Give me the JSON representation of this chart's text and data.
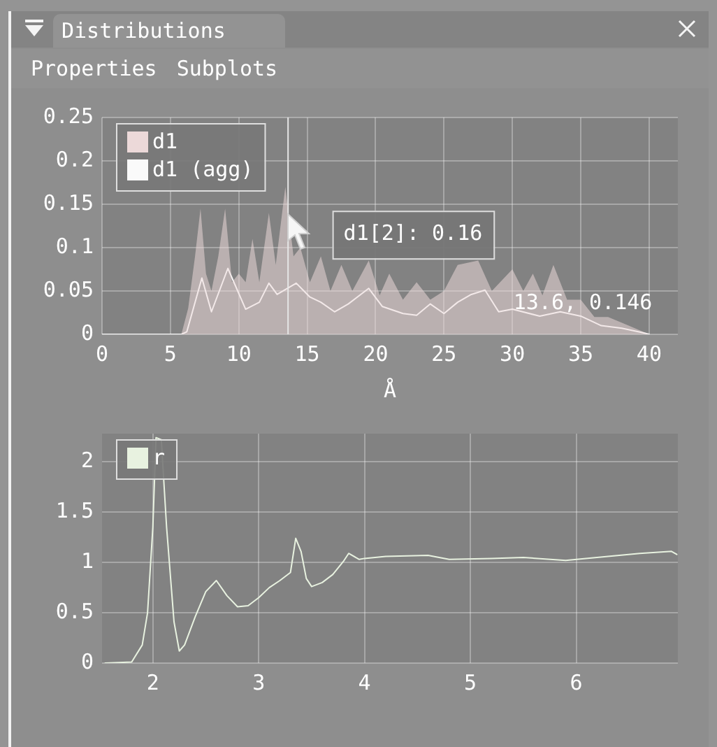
{
  "chart_data": [
    {
      "type": "line",
      "title": "Distributions",
      "xlabel": "Å",
      "annotations": [
        "Properties",
        "Subplots",
        "d1[2]: 0.16",
        "13.6, 0.146"
      ],
      "xlim": [
        0,
        42.1
      ],
      "ylim": [
        0,
        0.25
      ],
      "xticks": [
        0,
        5,
        10,
        15,
        20,
        25,
        30,
        35,
        40
      ],
      "yticks": [
        0,
        0.05,
        0.1,
        0.15,
        0.2,
        0.25
      ],
      "grid": true,
      "legend": "top left",
      "marker": "none",
      "ref_lines": [
        {
          "axis": "x",
          "value": 13.6,
          "color": "#e6e6e6"
        }
      ],
      "series": [
        {
          "name": "d1",
          "type": "area",
          "color": "#ecd9d9",
          "x": [
            0,
            5.8,
            6.3,
            6.8,
            7.2,
            7.6,
            8.0,
            8.5,
            9.0,
            9.5,
            10.0,
            10.5,
            11.0,
            11.5,
            12.2,
            12.7,
            13.4,
            14.0,
            14.5,
            15.2,
            16.0,
            16.7,
            17.5,
            18.3,
            19.5,
            20.3,
            21.0,
            22.0,
            23.0,
            24.0,
            25.0,
            26.0,
            27.5,
            28.5,
            30.0,
            30.8,
            31.5,
            32.2,
            33.0,
            34.0,
            35.0,
            36.0,
            37.0,
            38.5,
            40.0
          ],
          "values": [
            0,
            0,
            0.03,
            0.09,
            0.145,
            0.07,
            0.05,
            0.09,
            0.145,
            0.06,
            0.07,
            0.06,
            0.11,
            0.06,
            0.14,
            0.08,
            0.17,
            0.09,
            0.1,
            0.06,
            0.09,
            0.05,
            0.08,
            0.05,
            0.085,
            0.045,
            0.07,
            0.04,
            0.06,
            0.04,
            0.05,
            0.08,
            0.085,
            0.05,
            0.075,
            0.05,
            0.07,
            0.045,
            0.08,
            0.04,
            0.04,
            0.02,
            0.02,
            0.01,
            0
          ]
        },
        {
          "name": "d1 (agg)",
          "type": "line",
          "color": "#fafafa",
          "x": [
            0,
            5.8,
            6.2,
            7.3,
            8.0,
            9.2,
            10.5,
            11.5,
            12.2,
            12.8,
            14.2,
            15.2,
            16.0,
            17.0,
            18.0,
            19.5,
            20.5,
            22.0,
            23.0,
            24.0,
            25.0,
            26.0,
            27.0,
            28.0,
            29.0,
            30.0,
            32.0,
            33.5,
            35.0,
            36.5,
            38.0,
            39.5,
            40.0
          ],
          "values": [
            0,
            0,
            0.003,
            0.065,
            0.026,
            0.076,
            0.029,
            0.037,
            0.059,
            0.046,
            0.059,
            0.043,
            0.037,
            0.026,
            0.035,
            0.053,
            0.032,
            0.024,
            0.022,
            0.035,
            0.024,
            0.037,
            0.046,
            0.051,
            0.026,
            0.029,
            0.021,
            0.026,
            0.021,
            0.01,
            0.007,
            0.002,
            0
          ]
        }
      ]
    },
    {
      "type": "line",
      "xlim": [
        1.52,
        6.96
      ],
      "ylim": [
        0,
        2.28
      ],
      "xticks": [
        2,
        3,
        4,
        5,
        6
      ],
      "yticks": [
        0,
        0.5,
        1,
        1.5,
        2
      ],
      "grid": true,
      "legend": "top left",
      "marker": "none",
      "series": [
        {
          "name": "r",
          "color": "#e8f2e0",
          "x": [
            1.55,
            1.8,
            1.9,
            1.95,
            2.0,
            2.03,
            2.08,
            2.13,
            2.2,
            2.25,
            2.3,
            2.4,
            2.5,
            2.6,
            2.7,
            2.8,
            2.9,
            3.0,
            3.1,
            3.2,
            3.3,
            3.35,
            3.4,
            3.45,
            3.5,
            3.6,
            3.7,
            3.8,
            3.85,
            3.95,
            4.0,
            4.2,
            4.6,
            4.8,
            5.2,
            5.5,
            5.9,
            6.3,
            6.6,
            6.9,
            6.95
          ],
          "values": [
            0,
            0.01,
            0.18,
            0.5,
            1.35,
            2.24,
            2.22,
            1.35,
            0.41,
            0.12,
            0.18,
            0.46,
            0.71,
            0.82,
            0.67,
            0.56,
            0.57,
            0.65,
            0.75,
            0.82,
            0.9,
            1.24,
            1.11,
            0.84,
            0.76,
            0.8,
            0.88,
            1.01,
            1.09,
            1.03,
            1.04,
            1.06,
            1.07,
            1.03,
            1.04,
            1.05,
            1.02,
            1.06,
            1.09,
            1.11,
            1.08
          ]
        }
      ]
    }
  ]
}
